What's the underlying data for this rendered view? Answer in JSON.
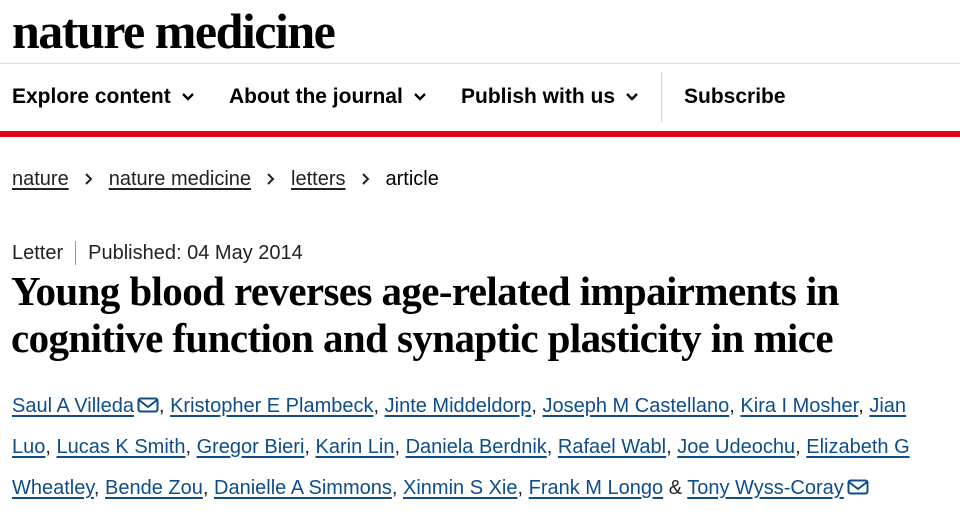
{
  "brand": {
    "logo_text": "nature medicine"
  },
  "nav": {
    "items": [
      {
        "label": "Explore content",
        "has_dropdown": true
      },
      {
        "label": "About the journal",
        "has_dropdown": true
      },
      {
        "label": "Publish with us",
        "has_dropdown": true
      },
      {
        "label": "Subscribe",
        "has_dropdown": false
      }
    ],
    "accent_color": "#e2001a"
  },
  "breadcrumb": {
    "links": [
      "nature",
      "nature medicine",
      "letters"
    ],
    "current": "article"
  },
  "article": {
    "type": "Letter",
    "published": "Published: 04 May 2014",
    "title": "Young blood reverses age-related impairments in cognitive function and synaptic plasticity in mice",
    "authors": {
      "line1": [
        "Saul A Villeda",
        "Kristopher E Plambeck",
        "Jinte Middeldorp",
        "Joseph M Castellano",
        "Kira I Mosher",
        "Jian"
      ],
      "line2": [
        "Luo",
        "Lucas K Smith",
        "Gregor Bieri",
        "Karin Lin",
        "Daniela Berdnik",
        "Rafael Wabl",
        "Joe Udeochu",
        "Elizabeth G"
      ],
      "line3": [
        "Wheatley",
        "Bende Zou",
        "Danielle A Simmons",
        "Xinmin S Xie",
        "Frank M Longo",
        "Tony Wyss-Coray"
      ],
      "conjunction": "&",
      "separator": ","
    }
  },
  "icons": {
    "chevron": "chevron-down-icon",
    "crumb": "chevron-right-icon",
    "mail": "mail-icon"
  }
}
